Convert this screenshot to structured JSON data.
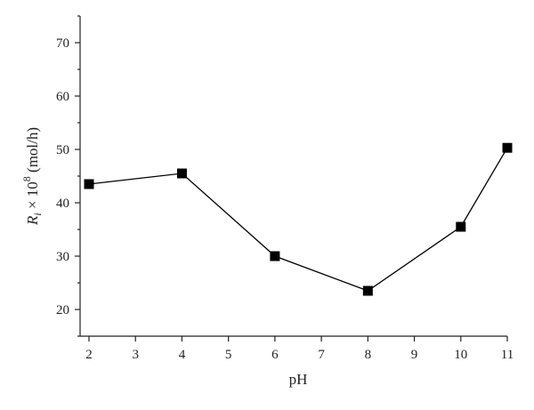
{
  "chart_data": {
    "type": "line",
    "title": "",
    "xlabel": "pH",
    "ylabel": {
      "symbol": "R",
      "subscript": "i",
      "times": " × 10",
      "exponent": "8",
      "unit": " (mol/h)"
    },
    "xlim": [
      2,
      11
    ],
    "ylim": [
      15,
      75
    ],
    "x_ticks": [
      2,
      3,
      4,
      5,
      6,
      7,
      8,
      9,
      10,
      11
    ],
    "y_ticks": [
      20,
      30,
      40,
      50,
      60,
      70
    ],
    "series": [
      {
        "x": [
          2,
          4,
          6,
          8,
          10,
          11
        ],
        "y": [
          43.5,
          45.5,
          30,
          23.5,
          35.5,
          50.3
        ],
        "marker": "square",
        "color": "#000000"
      }
    ],
    "grid": false,
    "legend": "none"
  }
}
